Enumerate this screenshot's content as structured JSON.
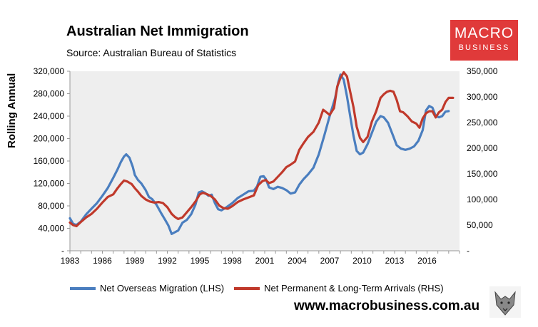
{
  "header": {
    "title": "Australian Net Immigration",
    "source": "Source: Australian Bureau of Statistics"
  },
  "logo": {
    "line1": "MACRO",
    "line2": "BUSINESS"
  },
  "footer": {
    "website": "www.macrobusiness.com.au"
  },
  "colors": {
    "lhs_series": "#4a7ebf",
    "rhs_series": "#c0392b",
    "plot_bg": "#eeeeee"
  },
  "chart_data": {
    "type": "line",
    "title": "Australian Net Immigration",
    "ylabel": "Rolling Annual",
    "xlim": [
      1983,
      2019
    ],
    "ylim_left": [
      0,
      320000
    ],
    "ylim_right": [
      0,
      350000
    ],
    "x_ticks": [
      "1983",
      "1986",
      "1989",
      "1992",
      "1995",
      "1998",
      "2001",
      "2004",
      "2007",
      "2010",
      "2013",
      "2016"
    ],
    "y_left_ticks": [
      "-",
      "40,000",
      "80,000",
      "120,000",
      "160,000",
      "200,000",
      "240,000",
      "280,000",
      "320,000"
    ],
    "y_right_ticks": [
      "-",
      "50,000",
      "100,000",
      "150,000",
      "200,000",
      "250,000",
      "300,000",
      "350,000"
    ],
    "series": [
      {
        "name": "Net Overseas Migration (LHS)",
        "axis": "left",
        "points": [
          [
            1983.0,
            58000
          ],
          [
            1983.3,
            48000
          ],
          [
            1983.6,
            46000
          ],
          [
            1984.0,
            52000
          ],
          [
            1984.5,
            65000
          ],
          [
            1985.0,
            75000
          ],
          [
            1985.5,
            85000
          ],
          [
            1986.0,
            98000
          ],
          [
            1986.5,
            112000
          ],
          [
            1987.0,
            130000
          ],
          [
            1987.4,
            145000
          ],
          [
            1987.7,
            158000
          ],
          [
            1988.0,
            168000
          ],
          [
            1988.2,
            172000
          ],
          [
            1988.5,
            166000
          ],
          [
            1988.8,
            150000
          ],
          [
            1989.0,
            135000
          ],
          [
            1989.3,
            126000
          ],
          [
            1989.6,
            120000
          ],
          [
            1990.0,
            108000
          ],
          [
            1990.3,
            96000
          ],
          [
            1990.6,
            92000
          ],
          [
            1991.0,
            82000
          ],
          [
            1991.4,
            68000
          ],
          [
            1991.8,
            55000
          ],
          [
            1992.1,
            45000
          ],
          [
            1992.4,
            30000
          ],
          [
            1992.7,
            33000
          ],
          [
            1993.0,
            36000
          ],
          [
            1993.4,
            50000
          ],
          [
            1993.8,
            55000
          ],
          [
            1994.2,
            65000
          ],
          [
            1994.6,
            82000
          ],
          [
            1994.9,
            104000
          ],
          [
            1995.2,
            106000
          ],
          [
            1995.5,
            103000
          ],
          [
            1995.8,
            98000
          ],
          [
            1996.1,
            100000
          ],
          [
            1996.4,
            85000
          ],
          [
            1996.7,
            74000
          ],
          [
            1997.0,
            72000
          ],
          [
            1997.5,
            78000
          ],
          [
            1998.0,
            85000
          ],
          [
            1998.5,
            94000
          ],
          [
            1999.0,
            100000
          ],
          [
            1999.5,
            106000
          ],
          [
            2000.0,
            107000
          ],
          [
            2000.3,
            115000
          ],
          [
            2000.6,
            132000
          ],
          [
            2000.9,
            133000
          ],
          [
            2001.1,
            128000
          ],
          [
            2001.4,
            113000
          ],
          [
            2001.8,
            110000
          ],
          [
            2002.2,
            114000
          ],
          [
            2002.6,
            112000
          ],
          [
            2003.0,
            108000
          ],
          [
            2003.4,
            102000
          ],
          [
            2003.8,
            104000
          ],
          [
            2004.2,
            118000
          ],
          [
            2004.6,
            128000
          ],
          [
            2005.0,
            136000
          ],
          [
            2005.5,
            148000
          ],
          [
            2006.0,
            172000
          ],
          [
            2006.5,
            205000
          ],
          [
            2007.0,
            240000
          ],
          [
            2007.5,
            272000
          ],
          [
            2007.8,
            300000
          ],
          [
            2008.0,
            314000
          ],
          [
            2008.3,
            305000
          ],
          [
            2008.6,
            275000
          ],
          [
            2008.9,
            240000
          ],
          [
            2009.2,
            205000
          ],
          [
            2009.5,
            178000
          ],
          [
            2009.8,
            172000
          ],
          [
            2010.1,
            175000
          ],
          [
            2010.5,
            190000
          ],
          [
            2010.9,
            210000
          ],
          [
            2011.3,
            230000
          ],
          [
            2011.7,
            240000
          ],
          [
            2012.0,
            238000
          ],
          [
            2012.4,
            228000
          ],
          [
            2012.8,
            208000
          ],
          [
            2013.2,
            188000
          ],
          [
            2013.6,
            182000
          ],
          [
            2014.0,
            180000
          ],
          [
            2014.4,
            182000
          ],
          [
            2014.8,
            186000
          ],
          [
            2015.2,
            196000
          ],
          [
            2015.6,
            215000
          ],
          [
            2015.9,
            250000
          ],
          [
            2016.2,
            258000
          ],
          [
            2016.5,
            255000
          ],
          [
            2016.8,
            240000
          ],
          [
            2017.1,
            238000
          ],
          [
            2017.4,
            240000
          ],
          [
            2017.7,
            248000
          ],
          [
            2018.0,
            249000
          ]
        ]
      },
      {
        "name": "Net Permanent & Long-Term Arrivals (RHS)",
        "axis": "right",
        "points": [
          [
            1983.0,
            55000
          ],
          [
            1983.3,
            50000
          ],
          [
            1983.6,
            48000
          ],
          [
            1984.0,
            56000
          ],
          [
            1984.5,
            65000
          ],
          [
            1985.0,
            72000
          ],
          [
            1985.5,
            82000
          ],
          [
            1986.0,
            94000
          ],
          [
            1986.5,
            105000
          ],
          [
            1987.0,
            110000
          ],
          [
            1987.4,
            122000
          ],
          [
            1987.7,
            130000
          ],
          [
            1988.0,
            137000
          ],
          [
            1988.3,
            135000
          ],
          [
            1988.7,
            130000
          ],
          [
            1989.0,
            122000
          ],
          [
            1989.3,
            115000
          ],
          [
            1989.6,
            107000
          ],
          [
            1990.0,
            100000
          ],
          [
            1990.4,
            96000
          ],
          [
            1990.8,
            94000
          ],
          [
            1991.2,
            95000
          ],
          [
            1991.6,
            93000
          ],
          [
            1992.0,
            85000
          ],
          [
            1992.4,
            72000
          ],
          [
            1992.7,
            66000
          ],
          [
            1993.0,
            62000
          ],
          [
            1993.4,
            65000
          ],
          [
            1993.8,
            75000
          ],
          [
            1994.2,
            85000
          ],
          [
            1994.6,
            96000
          ],
          [
            1995.0,
            110000
          ],
          [
            1995.3,
            113000
          ],
          [
            1995.7,
            110000
          ],
          [
            1996.0,
            107000
          ],
          [
            1996.4,
            100000
          ],
          [
            1996.8,
            88000
          ],
          [
            1997.2,
            83000
          ],
          [
            1997.6,
            82000
          ],
          [
            1998.0,
            87000
          ],
          [
            1998.5,
            95000
          ],
          [
            1999.0,
            100000
          ],
          [
            1999.5,
            104000
          ],
          [
            2000.0,
            108000
          ],
          [
            2000.4,
            128000
          ],
          [
            2000.8,
            136000
          ],
          [
            2001.1,
            138000
          ],
          [
            2001.4,
            132000
          ],
          [
            2001.8,
            135000
          ],
          [
            2002.2,
            144000
          ],
          [
            2002.6,
            153000
          ],
          [
            2003.0,
            163000
          ],
          [
            2003.4,
            168000
          ],
          [
            2003.8,
            174000
          ],
          [
            2004.2,
            197000
          ],
          [
            2004.6,
            210000
          ],
          [
            2005.0,
            222000
          ],
          [
            2005.5,
            232000
          ],
          [
            2006.0,
            250000
          ],
          [
            2006.4,
            275000
          ],
          [
            2006.7,
            270000
          ],
          [
            2007.0,
            265000
          ],
          [
            2007.4,
            278000
          ],
          [
            2007.7,
            320000
          ],
          [
            2008.0,
            337000
          ],
          [
            2008.3,
            348000
          ],
          [
            2008.6,
            340000
          ],
          [
            2008.9,
            310000
          ],
          [
            2009.2,
            280000
          ],
          [
            2009.5,
            242000
          ],
          [
            2009.8,
            220000
          ],
          [
            2010.1,
            212000
          ],
          [
            2010.5,
            222000
          ],
          [
            2010.9,
            252000
          ],
          [
            2011.3,
            272000
          ],
          [
            2011.7,
            298000
          ],
          [
            2012.0,
            305000
          ],
          [
            2012.3,
            310000
          ],
          [
            2012.6,
            312000
          ],
          [
            2012.9,
            310000
          ],
          [
            2013.2,
            294000
          ],
          [
            2013.5,
            272000
          ],
          [
            2013.8,
            270000
          ],
          [
            2014.2,
            262000
          ],
          [
            2014.6,
            252000
          ],
          [
            2015.0,
            248000
          ],
          [
            2015.3,
            240000
          ],
          [
            2015.6,
            258000
          ],
          [
            2015.9,
            268000
          ],
          [
            2016.2,
            272000
          ],
          [
            2016.5,
            272000
          ],
          [
            2016.8,
            260000
          ],
          [
            2017.1,
            270000
          ],
          [
            2017.4,
            275000
          ],
          [
            2017.7,
            290000
          ],
          [
            2018.0,
            298000
          ],
          [
            2018.4,
            298000
          ]
        ]
      }
    ]
  }
}
